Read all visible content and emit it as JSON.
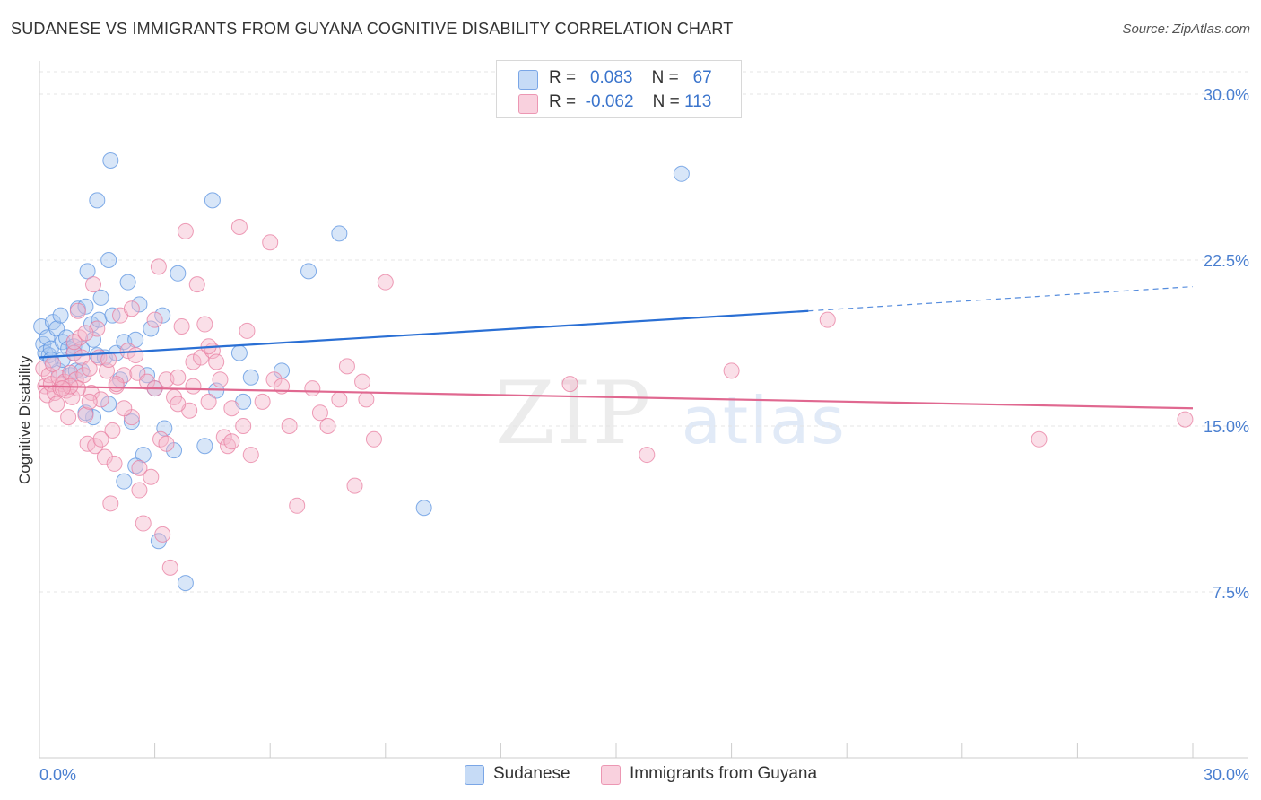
{
  "title": "SUDANESE VS IMMIGRANTS FROM GUYANA COGNITIVE DISABILITY CORRELATION CHART",
  "source": "Source: ZipAtlas.com",
  "watermark": {
    "zip": "ZIP",
    "atlas": "atlas"
  },
  "legend": {
    "rows": [
      {
        "r_label": "R =",
        "r_value": "0.083",
        "n_label": "N =",
        "n_value": "67",
        "color": "#a9c8f0"
      },
      {
        "r_label": "R =",
        "r_value": "-0.062",
        "n_label": "N =",
        "n_value": "113",
        "color": "#f5b8cb"
      }
    ]
  },
  "bottom_legend": [
    {
      "label": "Sudanese",
      "color": "#a9c8f0"
    },
    {
      "label": "Immigrants from Guyana",
      "color": "#f5b8cb"
    }
  ],
  "chart_data": {
    "type": "scatter",
    "title": "SUDANESE VS IMMIGRANTS FROM GUYANA COGNITIVE DISABILITY CORRELATION CHART",
    "xlabel": "",
    "ylabel": "Cognitive Disability",
    "xlim": [
      0,
      30
    ],
    "ylim": [
      0,
      31.5
    ],
    "x_tick_labels": [
      "0.0%",
      "30.0%"
    ],
    "y_ticks": [
      7.5,
      15.0,
      22.5,
      30.0
    ],
    "y_tick_labels": [
      "7.5%",
      "15.0%",
      "22.5%",
      "30.0%"
    ],
    "grid": true,
    "series": [
      {
        "name": "Sudanese",
        "color": "#5b93e0",
        "fill": "#a9c8f0",
        "line": "#2a6fd4",
        "trend": {
          "x": [
            0,
            20
          ],
          "y": [
            18.1,
            20.2
          ],
          "x_dashed_end": 30,
          "y_dashed_end": 21.3
        },
        "points": [
          [
            0.05,
            19.5
          ],
          [
            0.1,
            18.7
          ],
          [
            0.15,
            18.3
          ],
          [
            0.2,
            19.0
          ],
          [
            0.25,
            18.2
          ],
          [
            0.3,
            18.5
          ],
          [
            0.35,
            19.7
          ],
          [
            0.45,
            19.4
          ],
          [
            0.5,
            17.5
          ],
          [
            0.55,
            20.0
          ],
          [
            0.6,
            18.8
          ],
          [
            0.7,
            19.0
          ],
          [
            0.75,
            18.5
          ],
          [
            0.8,
            17.3
          ],
          [
            0.9,
            18.6
          ],
          [
            0.95,
            17.5
          ],
          [
            1.0,
            20.3
          ],
          [
            1.1,
            18.5
          ],
          [
            1.2,
            20.4
          ],
          [
            1.25,
            22.0
          ],
          [
            1.35,
            19.6
          ],
          [
            1.4,
            18.9
          ],
          [
            1.5,
            18.2
          ],
          [
            1.55,
            19.8
          ],
          [
            1.6,
            20.8
          ],
          [
            1.7,
            18.1
          ],
          [
            1.8,
            22.5
          ],
          [
            1.9,
            20.0
          ],
          [
            2.0,
            18.3
          ],
          [
            2.1,
            17.1
          ],
          [
            2.2,
            18.8
          ],
          [
            2.3,
            21.5
          ],
          [
            2.4,
            15.2
          ],
          [
            2.5,
            18.9
          ],
          [
            2.6,
            20.5
          ],
          [
            2.7,
            13.7
          ],
          [
            2.8,
            17.3
          ],
          [
            2.9,
            19.4
          ],
          [
            3.0,
            16.7
          ],
          [
            3.2,
            20.0
          ],
          [
            3.25,
            14.9
          ],
          [
            3.5,
            13.9
          ],
          [
            3.6,
            21.9
          ],
          [
            3.8,
            7.9
          ],
          [
            4.3,
            14.1
          ],
          [
            4.5,
            25.2
          ],
          [
            4.6,
            16.6
          ],
          [
            5.2,
            18.3
          ],
          [
            5.3,
            16.1
          ],
          [
            5.5,
            17.2
          ],
          [
            6.3,
            17.5
          ],
          [
            7.0,
            22.0
          ],
          [
            7.8,
            23.7
          ],
          [
            10.0,
            11.3
          ],
          [
            16.7,
            26.4
          ],
          [
            1.85,
            27.0
          ],
          [
            1.5,
            25.2
          ],
          [
            1.4,
            15.4
          ],
          [
            1.8,
            16.0
          ],
          [
            2.5,
            13.2
          ],
          [
            2.2,
            12.5
          ],
          [
            3.1,
            9.8
          ],
          [
            1.2,
            15.6
          ],
          [
            0.6,
            18.0
          ],
          [
            0.3,
            18.0
          ],
          [
            0.9,
            18.3
          ],
          [
            1.1,
            17.5
          ]
        ]
      },
      {
        "name": "Immigrants from Guyana",
        "color": "#e87ea0",
        "fill": "#f5b8cb",
        "line": "#e06890",
        "trend": {
          "x": [
            0,
            30
          ],
          "y": [
            16.8,
            15.8
          ]
        },
        "points": [
          [
            0.1,
            17.6
          ],
          [
            0.15,
            16.8
          ],
          [
            0.2,
            16.4
          ],
          [
            0.25,
            17.3
          ],
          [
            0.3,
            16.9
          ],
          [
            0.35,
            17.8
          ],
          [
            0.4,
            16.5
          ],
          [
            0.45,
            16.0
          ],
          [
            0.5,
            17.2
          ],
          [
            0.55,
            16.7
          ],
          [
            0.6,
            16.9
          ],
          [
            0.65,
            17.0
          ],
          [
            0.7,
            16.6
          ],
          [
            0.75,
            15.4
          ],
          [
            0.8,
            17.4
          ],
          [
            0.85,
            16.3
          ],
          [
            0.9,
            18.3
          ],
          [
            0.95,
            17.1
          ],
          [
            1.0,
            20.2
          ],
          [
            1.05,
            19.0
          ],
          [
            1.1,
            18.1
          ],
          [
            1.15,
            17.3
          ],
          [
            1.2,
            15.5
          ],
          [
            1.25,
            14.2
          ],
          [
            1.3,
            17.6
          ],
          [
            1.35,
            16.5
          ],
          [
            1.4,
            21.4
          ],
          [
            1.45,
            14.1
          ],
          [
            1.5,
            19.4
          ],
          [
            1.55,
            18.1
          ],
          [
            1.6,
            16.2
          ],
          [
            1.7,
            13.6
          ],
          [
            1.75,
            17.5
          ],
          [
            1.8,
            18.0
          ],
          [
            1.85,
            11.5
          ],
          [
            1.9,
            14.8
          ],
          [
            1.95,
            13.3
          ],
          [
            2.0,
            16.8
          ],
          [
            2.1,
            20.0
          ],
          [
            2.2,
            17.3
          ],
          [
            2.3,
            18.4
          ],
          [
            2.4,
            20.3
          ],
          [
            2.5,
            18.2
          ],
          [
            2.55,
            17.4
          ],
          [
            2.6,
            13.1
          ],
          [
            2.7,
            10.6
          ],
          [
            2.8,
            17.0
          ],
          [
            2.9,
            12.7
          ],
          [
            3.0,
            19.8
          ],
          [
            3.1,
            22.2
          ],
          [
            3.15,
            14.4
          ],
          [
            3.2,
            10.1
          ],
          [
            3.3,
            17.1
          ],
          [
            3.4,
            8.6
          ],
          [
            3.5,
            16.3
          ],
          [
            3.6,
            17.2
          ],
          [
            3.7,
            19.5
          ],
          [
            3.8,
            23.8
          ],
          [
            3.9,
            15.7
          ],
          [
            4.0,
            17.9
          ],
          [
            4.1,
            21.4
          ],
          [
            4.2,
            18.1
          ],
          [
            4.3,
            19.6
          ],
          [
            4.4,
            16.1
          ],
          [
            4.5,
            18.4
          ],
          [
            4.6,
            17.9
          ],
          [
            4.7,
            17.1
          ],
          [
            4.8,
            14.5
          ],
          [
            4.9,
            14.1
          ],
          [
            5.0,
            15.8
          ],
          [
            5.2,
            24.0
          ],
          [
            5.3,
            15.0
          ],
          [
            5.4,
            19.3
          ],
          [
            5.5,
            13.7
          ],
          [
            5.8,
            16.1
          ],
          [
            6.0,
            23.3
          ],
          [
            6.1,
            17.1
          ],
          [
            6.3,
            16.8
          ],
          [
            6.5,
            15.0
          ],
          [
            6.7,
            11.4
          ],
          [
            7.1,
            16.7
          ],
          [
            7.3,
            15.6
          ],
          [
            7.5,
            15.0
          ],
          [
            7.8,
            16.2
          ],
          [
            8.0,
            17.7
          ],
          [
            8.2,
            12.3
          ],
          [
            8.4,
            17.0
          ],
          [
            8.5,
            16.2
          ],
          [
            8.7,
            14.4
          ],
          [
            9.0,
            21.5
          ],
          [
            13.8,
            16.9
          ],
          [
            15.8,
            13.7
          ],
          [
            18.0,
            17.5
          ],
          [
            20.5,
            19.8
          ],
          [
            26.0,
            14.4
          ],
          [
            29.8,
            15.3
          ],
          [
            2.0,
            16.9
          ],
          [
            1.3,
            16.1
          ],
          [
            1.0,
            16.7
          ],
          [
            0.8,
            16.8
          ],
          [
            0.6,
            16.7
          ],
          [
            2.4,
            15.4
          ],
          [
            3.0,
            16.7
          ],
          [
            4.0,
            16.8
          ],
          [
            5.0,
            14.3
          ],
          [
            3.6,
            16.0
          ],
          [
            2.2,
            15.8
          ],
          [
            1.6,
            14.4
          ],
          [
            0.9,
            18.8
          ],
          [
            1.2,
            19.2
          ],
          [
            4.4,
            18.6
          ],
          [
            3.3,
            14.2
          ],
          [
            2.6,
            12.1
          ]
        ]
      }
    ]
  }
}
